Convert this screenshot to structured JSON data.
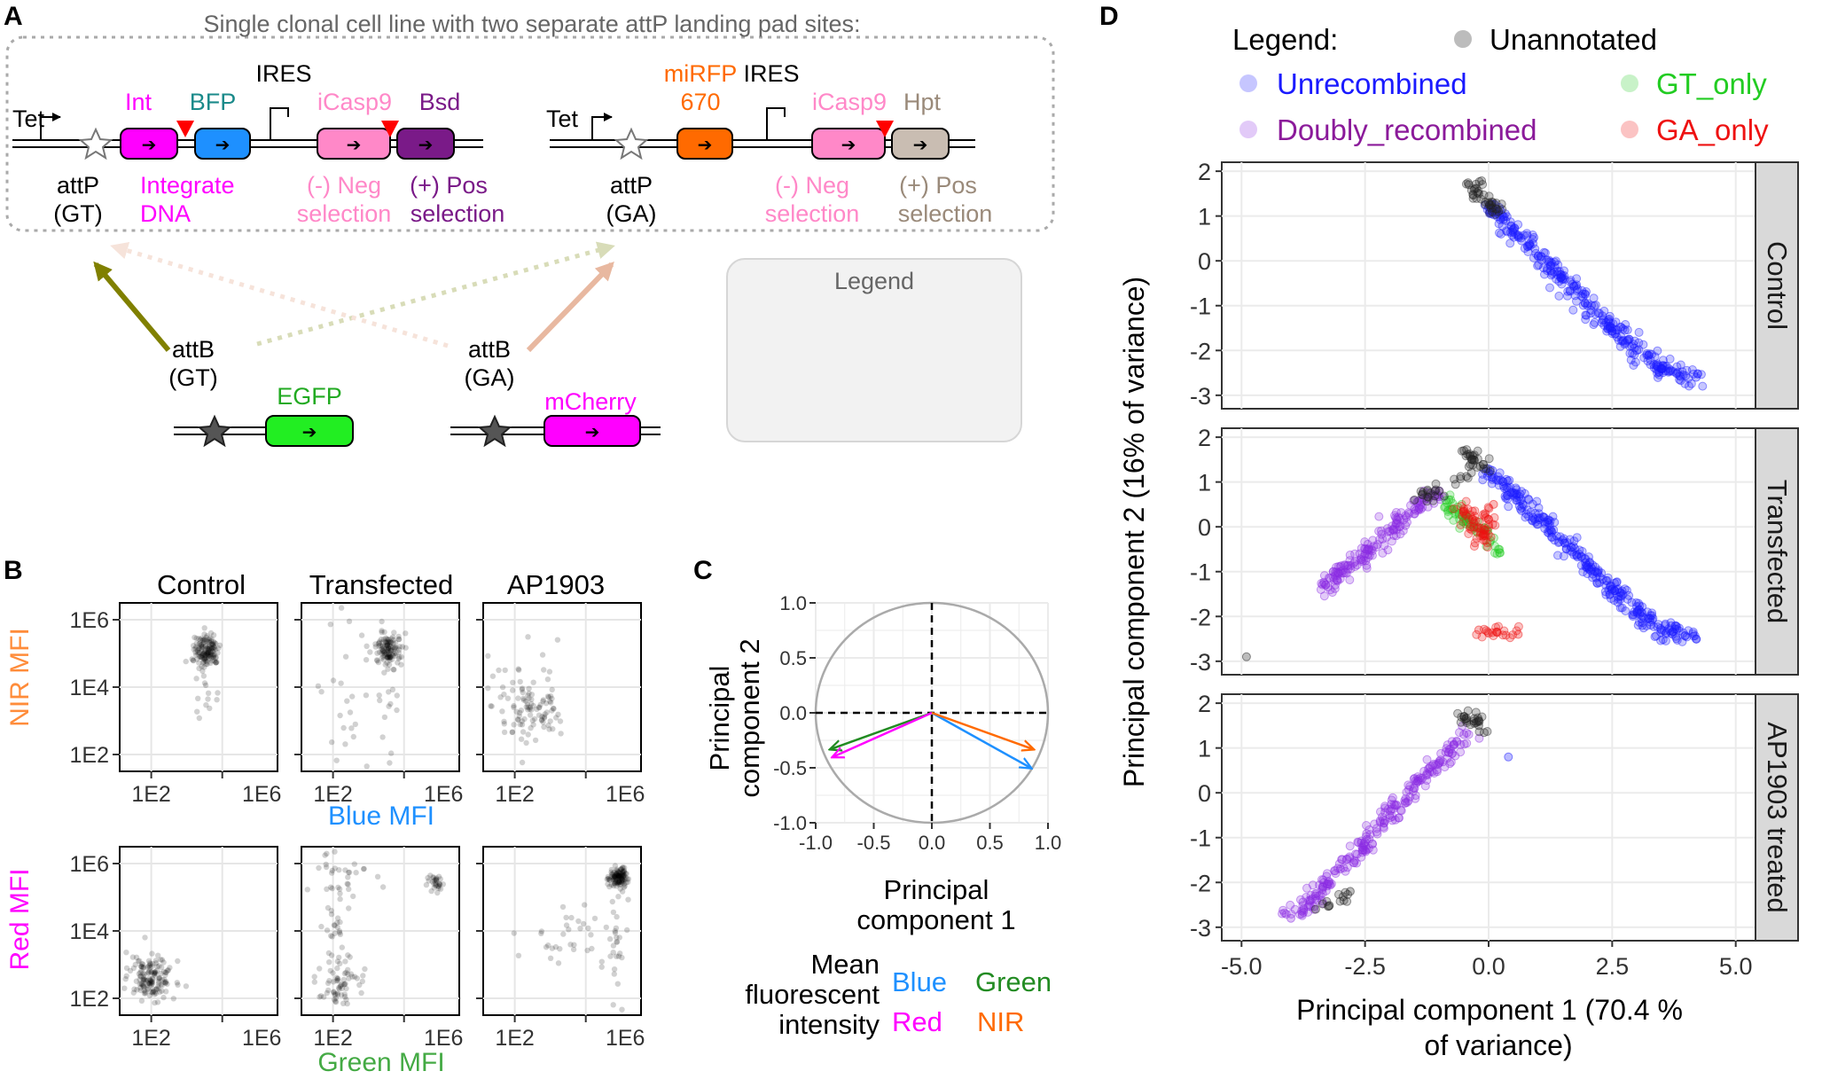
{
  "panel_labels": {
    "a": "A",
    "b": "B",
    "c": "C",
    "d": "D"
  },
  "colors": {
    "unannotated": "#222222",
    "unrecombined": "#1a1aff",
    "gt_only": "#22cc22",
    "ga_only": "#ee1111",
    "doubly": "#8a2be2",
    "int": "#ff00ff",
    "bfp": "#1e90ff",
    "icasp9": "#ff88c8",
    "bsd": "#7a1a88",
    "mirfp": "#ff6a00",
    "hpt": "#c9bdb2",
    "egfp": "#22ee22",
    "mcherry": "#ff00ff",
    "attB_GT_arrow": "#808000",
    "attB_GA_arrow": "#e8b8a0"
  },
  "panel_a": {
    "box_title": "Single clonal cell line with two separate attP landing pad sites:",
    "left_pad": {
      "promoter": "Tet",
      "ires": "IRES",
      "int": "Int",
      "bfp": "BFP",
      "icasp9": "iCasp9",
      "bsd": "Bsd",
      "attp_line1": "attP",
      "attp_line2": "(GT)",
      "int_desc_1": "Integrate",
      "int_desc_2": "DNA",
      "neg_1": "(-) Neg",
      "neg_2": "selection",
      "pos_1": "(+) Pos",
      "pos_2": "selection"
    },
    "right_pad": {
      "promoter": "Tet",
      "ires": "IRES",
      "mirfp_1": "miRFP",
      "mirfp_2": "670",
      "icasp9": "iCasp9",
      "hpt": "Hpt",
      "attp_line1": "attP",
      "attp_line2": "(GA)",
      "neg_1": "(-) Neg",
      "neg_2": "selection",
      "pos_1": "(+) Pos",
      "pos_2": "selection"
    },
    "attb_gt_1": "attB",
    "attb_gt_2": "(GT)",
    "attb_ga_1": "attB",
    "attb_ga_2": "(GA)",
    "egfp": "EGFP",
    "mcherry": "mCherry",
    "legend_box": "Legend"
  },
  "panel_b": {
    "col_titles": [
      "Control",
      "Transfected",
      "AP1903"
    ],
    "y_ticks": [
      "1E6",
      "1E4",
      "1E2"
    ],
    "x_ticks": [
      "1E2",
      "1E6"
    ],
    "top_ylabel": "NIR MFI",
    "top_xlabel": "Blue MFI",
    "bottom_ylabel": "Red MFI",
    "bottom_xlabel": "Green MFI"
  },
  "panel_c": {
    "ylabel_1": "Principal",
    "ylabel_2": "component 2",
    "xlabel_1": "Principal",
    "xlabel_2": "component 1",
    "y_ticks": [
      "1.0",
      "0.5",
      "0.0",
      "-0.5",
      "-1.0"
    ],
    "x_ticks": [
      "-1.0",
      "-0.5",
      "0.0",
      "0.5",
      "1.0"
    ],
    "legend_title_1": "Mean",
    "legend_title_2": "fluorescent",
    "legend_title_3": "intensity",
    "legend_blue": "Blue",
    "legend_green": "Green",
    "legend_red": "Red",
    "legend_nir": "NIR"
  },
  "panel_d": {
    "legend_title": "Legend:",
    "legend_unannotated": "Unannotated",
    "legend_unrecombined": "Unrecombined",
    "legend_gt_only": "GT_only",
    "legend_doubly": "Doubly_recombined",
    "legend_ga_only": "GA_only",
    "ylabel": "Principal component 2 (16% of variance)",
    "xlabel_1": "Principal component 1 (70.4 %",
    "xlabel_2": "of variance)",
    "y_ticks": [
      "2",
      "1",
      "0",
      "-1",
      "-2",
      "-3"
    ],
    "x_ticks": [
      "-5.0",
      "-2.5",
      "0.0",
      "2.5",
      "5.0"
    ],
    "facets": [
      "Control",
      "Transfected",
      "AP1903 treated"
    ]
  },
  "chart_data": [
    {
      "type": "scatter",
      "panel": "C",
      "title": "",
      "xlabel": "Principal component 1",
      "ylabel": "Principal component 2",
      "xlim": [
        -1.0,
        1.0
      ],
      "ylim": [
        -1.0,
        1.0
      ],
      "grid": true,
      "series": [
        {
          "name": "Blue",
          "x": [
            0.0,
            0.85
          ],
          "y": [
            0.0,
            -0.5
          ]
        },
        {
          "name": "Green",
          "x": [
            0.0,
            -0.87
          ],
          "y": [
            0.0,
            -0.33
          ]
        },
        {
          "name": "Red",
          "x": [
            0.0,
            -0.85
          ],
          "y": [
            0.0,
            -0.4
          ]
        },
        {
          "name": "NIR",
          "x": [
            0.0,
            0.87
          ],
          "y": [
            0.0,
            -0.33
          ]
        }
      ]
    },
    {
      "type": "scatter",
      "panel": "D",
      "xlabel": "Principal component 1 (70.4 % of variance)",
      "ylabel": "Principal component 2 (16% of variance)",
      "xlim": [
        -5.4,
        5.4
      ],
      "ylim": [
        -3.3,
        2.2
      ],
      "grid": true,
      "legend": "top",
      "facets": [
        {
          "name": "Control",
          "series": [
            {
              "name": "Unannotated",
              "x": [
                -0.4,
                -0.2,
                0.0,
                0.2
              ],
              "y": [
                1.7,
                1.5,
                1.3,
                1.1
              ]
            },
            {
              "name": "Unrecombined",
              "x": [
                0.0,
                0.5,
                1.0,
                1.5,
                2.0,
                2.5,
                3.0,
                3.5,
                4.2
              ],
              "y": [
                1.2,
                0.7,
                0.1,
                -0.4,
                -1.0,
                -1.5,
                -2.0,
                -2.4,
                -2.6
              ]
            }
          ]
        },
        {
          "name": "Transfected",
          "series": [
            {
              "name": "Unannotated",
              "x": [
                -0.5,
                -0.3,
                -0.1,
                -1.5,
                -1.0,
                -4.9
              ],
              "y": [
                1.7,
                1.5,
                1.3,
                0.6,
                0.8,
                -2.9
              ]
            },
            {
              "name": "Unrecombined",
              "x": [
                0.0,
                0.5,
                1.0,
                1.5,
                2.0,
                2.5,
                3.0,
                3.5,
                4.2
              ],
              "y": [
                1.2,
                0.7,
                0.2,
                -0.3,
                -0.9,
                -1.4,
                -1.9,
                -2.3,
                -2.5
              ]
            },
            {
              "name": "GT_only",
              "x": [
                -0.8,
                -0.6,
                -0.3,
                0.2
              ],
              "y": [
                0.6,
                0.3,
                0.0,
                -0.5
              ]
            },
            {
              "name": "GA_only",
              "x": [
                -0.5,
                -0.3,
                -0.1,
                0.1,
                -0.2,
                0.6
              ],
              "y": [
                0.4,
                0.1,
                -0.3,
                0.5,
                -2.3,
                -2.4
              ]
            },
            {
              "name": "Doubly_recombined",
              "x": [
                -3.3,
                -3.0,
                -2.5,
                -2.0,
                -1.5,
                -1.0
              ],
              "y": [
                -1.3,
                -1.0,
                -0.6,
                -0.1,
                0.4,
                0.8
              ]
            }
          ]
        },
        {
          "name": "AP1903 treated",
          "series": [
            {
              "name": "Unannotated",
              "x": [
                -0.5,
                -0.3,
                -0.2,
                -3.5,
                -2.8
              ],
              "y": [
                1.7,
                1.6,
                1.5,
                -2.6,
                -2.2
              ]
            },
            {
              "name": "Doubly_recombined",
              "x": [
                -4.0,
                -3.5,
                -3.0,
                -2.5,
                -2.0,
                -1.5,
                -1.0,
                -0.5
              ],
              "y": [
                -2.8,
                -2.3,
                -1.7,
                -1.1,
                -0.5,
                0.1,
                0.7,
                1.3
              ]
            },
            {
              "name": "Unrecombined",
              "x": [
                0.4
              ],
              "y": [
                0.8
              ]
            }
          ]
        }
      ]
    }
  ]
}
